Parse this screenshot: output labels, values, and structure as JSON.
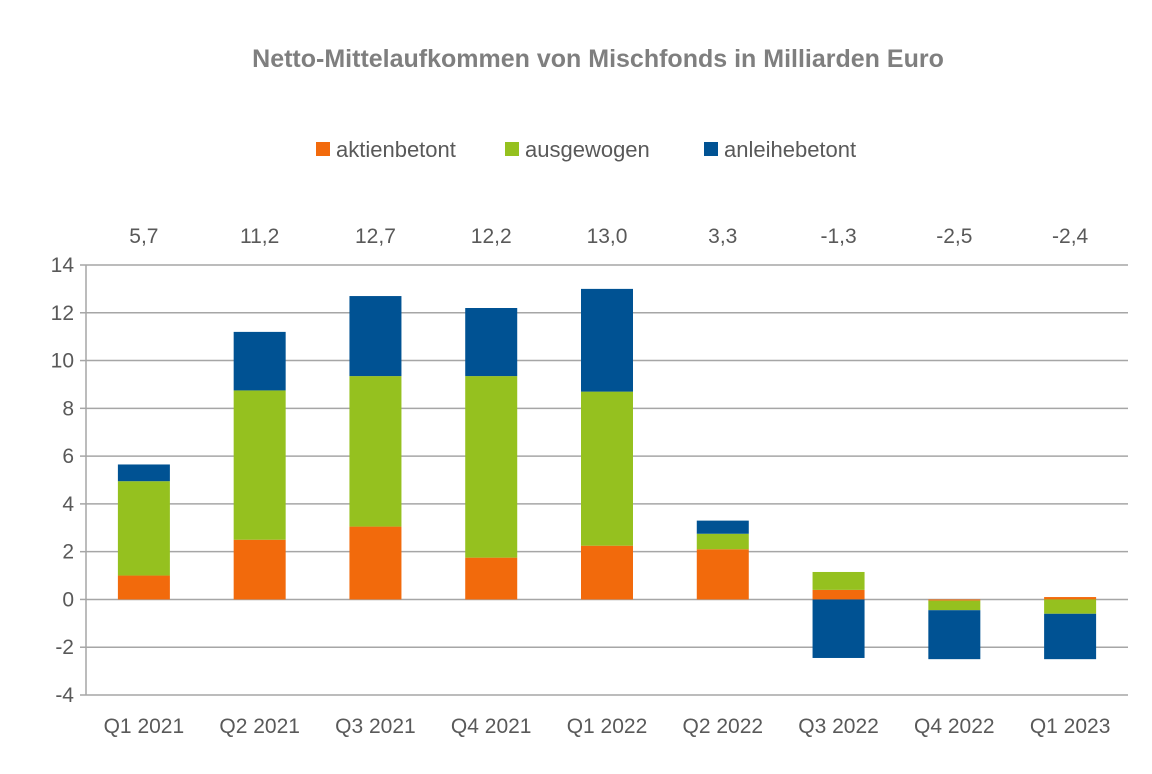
{
  "chart_data": {
    "type": "bar",
    "stacked": true,
    "title": "Netto-Mittelaufkommen von Mischfonds in Milliarden Euro",
    "categories": [
      "Q1 2021",
      "Q2 2021",
      "Q3 2021",
      "Q4 2021",
      "Q1 2022",
      "Q2 2022",
      "Q3 2022",
      "Q4 2022",
      "Q1 2023"
    ],
    "totals": [
      "5,7",
      "11,2",
      "12,7",
      "12,2",
      "13,0",
      "3,3",
      "-1,3",
      "-2,5",
      "-2,4"
    ],
    "series": [
      {
        "name": "aktienbetont",
        "color": "#f26a0c",
        "values": [
          1.0,
          2.5,
          3.05,
          1.75,
          2.25,
          2.1,
          0.4,
          -0.05,
          0.1
        ]
      },
      {
        "name": "ausgewogen",
        "color": "#95c11f",
        "values": [
          3.95,
          6.25,
          6.3,
          7.6,
          6.45,
          0.65,
          0.75,
          -0.4,
          -0.6
        ]
      },
      {
        "name": "anleihebetont",
        "color": "#005293",
        "values": [
          0.7,
          2.45,
          3.35,
          2.85,
          4.3,
          0.55,
          -2.45,
          -2.05,
          -1.9
        ]
      }
    ],
    "yticks": [
      "14",
      "12",
      "10",
      "8",
      "6",
      "4",
      "2",
      "0",
      "-2",
      "-4"
    ],
    "ylim": [
      -4,
      14
    ],
    "xlabel": "",
    "ylabel": "",
    "grid": true,
    "legend": "top-center"
  }
}
